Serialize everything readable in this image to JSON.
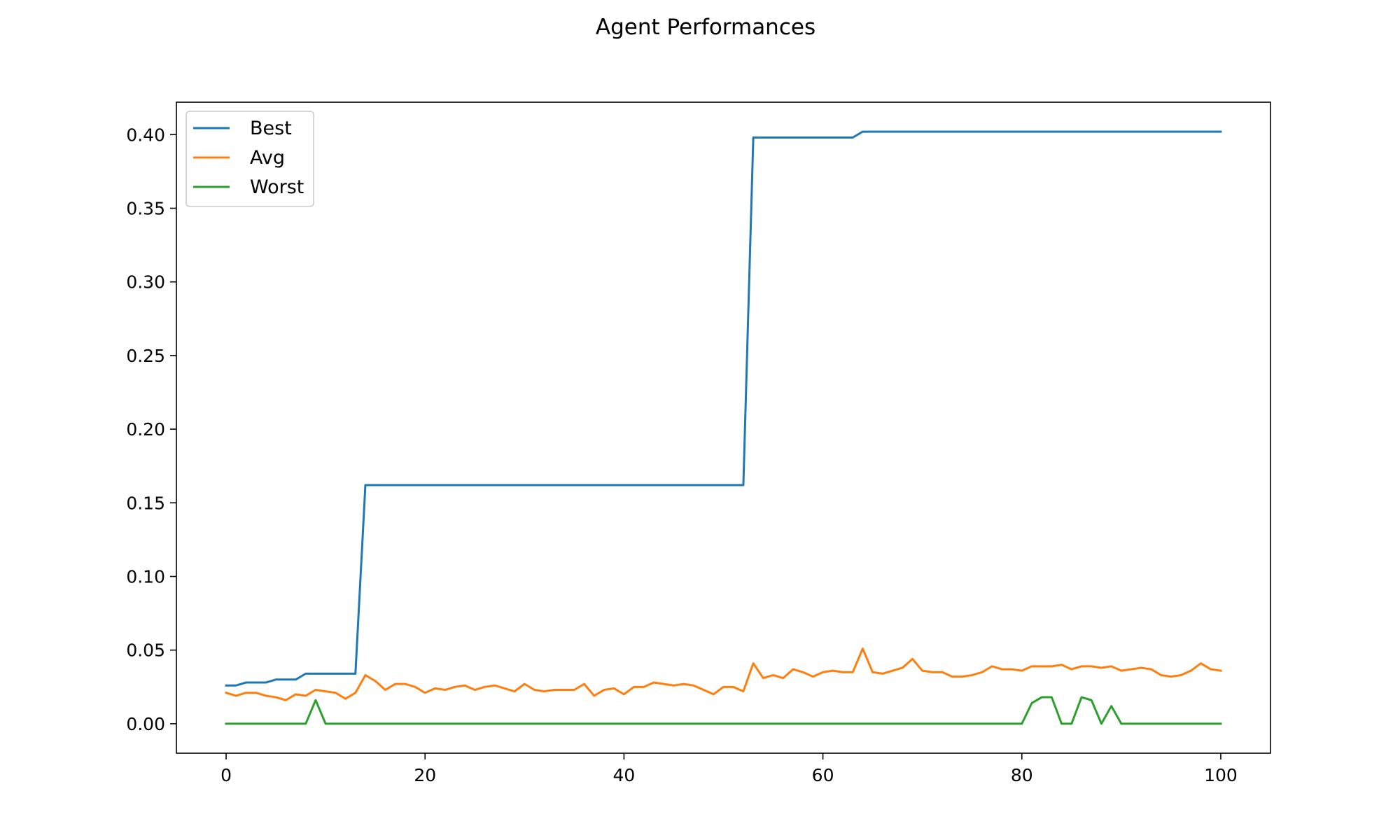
{
  "chart_data": {
    "type": "line",
    "title": "Agent Performances",
    "xlabel": "",
    "ylabel": "",
    "xlim": [
      -5,
      105
    ],
    "ylim": [
      -0.02,
      0.422
    ],
    "xticks": [
      0,
      20,
      40,
      60,
      80,
      100
    ],
    "xtick_labels": [
      "0",
      "20",
      "40",
      "60",
      "80",
      "100"
    ],
    "yticks": [
      0.0,
      0.05,
      0.1,
      0.15,
      0.2,
      0.25,
      0.3,
      0.35,
      0.4
    ],
    "ytick_labels": [
      "0.00",
      "0.05",
      "0.10",
      "0.15",
      "0.20",
      "0.25",
      "0.30",
      "0.35",
      "0.40"
    ],
    "grid": false,
    "legend_position": "upper-left",
    "series": [
      {
        "name": "Best",
        "color": "#1f77b4",
        "x": [
          0,
          1,
          2,
          4,
          5,
          7,
          8,
          13,
          14,
          52,
          53,
          63,
          64,
          100
        ],
        "values": [
          0.026,
          0.026,
          0.028,
          0.028,
          0.03,
          0.03,
          0.034,
          0.034,
          0.162,
          0.162,
          0.398,
          0.398,
          0.402,
          0.402
        ]
      },
      {
        "name": "Avg",
        "color": "#ff7f0e",
        "x": [
          0,
          1,
          2,
          3,
          4,
          5,
          6,
          7,
          8,
          9,
          10,
          11,
          12,
          13,
          14,
          15,
          16,
          17,
          18,
          19,
          20,
          21,
          22,
          23,
          24,
          25,
          26,
          27,
          28,
          29,
          30,
          31,
          32,
          33,
          34,
          35,
          36,
          37,
          38,
          39,
          40,
          41,
          42,
          43,
          44,
          45,
          46,
          47,
          48,
          49,
          50,
          51,
          52,
          53,
          54,
          55,
          56,
          57,
          58,
          59,
          60,
          61,
          62,
          63,
          64,
          65,
          66,
          67,
          68,
          69,
          70,
          71,
          72,
          73,
          74,
          75,
          76,
          77,
          78,
          79,
          80,
          81,
          82,
          83,
          84,
          85,
          86,
          87,
          88,
          89,
          90,
          91,
          92,
          93,
          94,
          95,
          96,
          97,
          98,
          99,
          100
        ],
        "values": [
          0.021,
          0.019,
          0.021,
          0.021,
          0.019,
          0.018,
          0.016,
          0.02,
          0.019,
          0.023,
          0.022,
          0.021,
          0.017,
          0.021,
          0.033,
          0.029,
          0.023,
          0.027,
          0.027,
          0.025,
          0.021,
          0.024,
          0.023,
          0.025,
          0.026,
          0.023,
          0.025,
          0.026,
          0.024,
          0.022,
          0.027,
          0.023,
          0.022,
          0.023,
          0.023,
          0.023,
          0.027,
          0.019,
          0.023,
          0.024,
          0.02,
          0.025,
          0.025,
          0.028,
          0.027,
          0.026,
          0.027,
          0.026,
          0.023,
          0.02,
          0.025,
          0.025,
          0.022,
          0.041,
          0.031,
          0.033,
          0.031,
          0.037,
          0.035,
          0.032,
          0.035,
          0.036,
          0.035,
          0.035,
          0.051,
          0.035,
          0.034,
          0.036,
          0.038,
          0.044,
          0.036,
          0.035,
          0.035,
          0.032,
          0.032,
          0.033,
          0.035,
          0.039,
          0.037,
          0.037,
          0.036,
          0.039,
          0.039,
          0.039,
          0.04,
          0.037,
          0.039,
          0.039,
          0.038,
          0.039,
          0.036,
          0.037,
          0.038,
          0.037,
          0.033,
          0.032,
          0.033,
          0.036,
          0.041,
          0.037,
          0.036
        ]
      },
      {
        "name": "Worst",
        "color": "#2ca02c",
        "x": [
          0,
          8,
          9,
          10,
          80,
          81,
          82,
          83,
          84,
          85,
          86,
          87,
          88,
          89,
          90,
          100
        ],
        "values": [
          0,
          0,
          0.016,
          0,
          0,
          0.014,
          0.018,
          0.018,
          0,
          0,
          0.018,
          0.016,
          0,
          0.012,
          0,
          0
        ]
      }
    ]
  }
}
